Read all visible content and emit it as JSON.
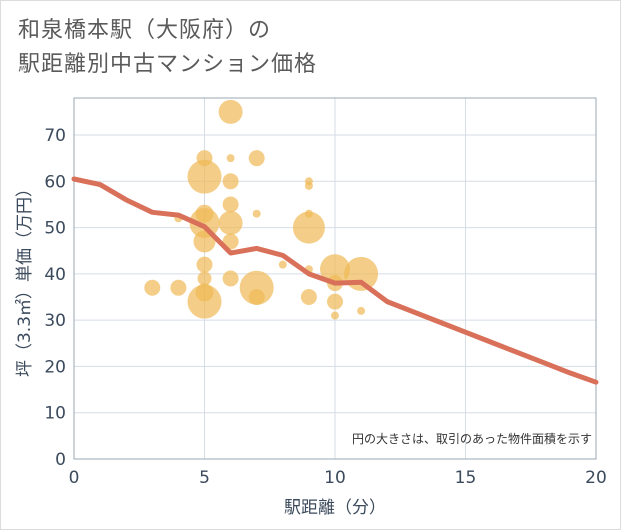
{
  "header": {
    "title_line1": "和泉橋本駅（大阪府）の",
    "title_line2": "駅距離別中古マンション価格"
  },
  "chart_data": {
    "type": "scatter",
    "title": "和泉橋本駅（大阪府）の駅距離別中古マンション価格",
    "xlabel": "駅距離（分）",
    "ylabel": "坪（3.3㎡）単価（万円）",
    "xlim": [
      0,
      20
    ],
    "ylim": [
      0,
      78
    ],
    "xticks": [
      0,
      5,
      10,
      15,
      20
    ],
    "yticks": [
      0,
      10,
      20,
      30,
      40,
      50,
      60,
      70
    ],
    "note": "円の大きさは、取引のあった物件面積を示す",
    "bubble_color": "#f0b955",
    "trend_color": "#d9705a",
    "bubbles": [
      {
        "x": 3,
        "y": 37,
        "size": 8
      },
      {
        "x": 4,
        "y": 52,
        "size": 4
      },
      {
        "x": 4,
        "y": 37,
        "size": 8
      },
      {
        "x": 5,
        "y": 65,
        "size": 8
      },
      {
        "x": 5,
        "y": 61,
        "size": 17
      },
      {
        "x": 5,
        "y": 53,
        "size": 9
      },
      {
        "x": 5,
        "y": 51,
        "size": 15
      },
      {
        "x": 5,
        "y": 47,
        "size": 11
      },
      {
        "x": 5,
        "y": 42,
        "size": 8
      },
      {
        "x": 5,
        "y": 39,
        "size": 7
      },
      {
        "x": 5,
        "y": 36,
        "size": 9
      },
      {
        "x": 5,
        "y": 34,
        "size": 17
      },
      {
        "x": 6,
        "y": 75,
        "size": 12
      },
      {
        "x": 6,
        "y": 65,
        "size": 4
      },
      {
        "x": 6,
        "y": 60,
        "size": 8
      },
      {
        "x": 6,
        "y": 55,
        "size": 8
      },
      {
        "x": 6,
        "y": 51,
        "size": 12
      },
      {
        "x": 6,
        "y": 47,
        "size": 8
      },
      {
        "x": 6,
        "y": 39,
        "size": 8
      },
      {
        "x": 7,
        "y": 65,
        "size": 8
      },
      {
        "x": 7,
        "y": 53,
        "size": 4
      },
      {
        "x": 7,
        "y": 37,
        "size": 17
      },
      {
        "x": 7,
        "y": 35,
        "size": 8
      },
      {
        "x": 8,
        "y": 42,
        "size": 4
      },
      {
        "x": 9,
        "y": 60,
        "size": 4
      },
      {
        "x": 9,
        "y": 59,
        "size": 4
      },
      {
        "x": 9,
        "y": 53,
        "size": 4
      },
      {
        "x": 9,
        "y": 50,
        "size": 16
      },
      {
        "x": 9,
        "y": 41,
        "size": 4
      },
      {
        "x": 9,
        "y": 35,
        "size": 8
      },
      {
        "x": 10,
        "y": 41,
        "size": 15
      },
      {
        "x": 10,
        "y": 38,
        "size": 8
      },
      {
        "x": 10,
        "y": 34,
        "size": 8
      },
      {
        "x": 10,
        "y": 31,
        "size": 4
      },
      {
        "x": 11,
        "y": 40,
        "size": 17
      },
      {
        "x": 11,
        "y": 32,
        "size": 4
      }
    ],
    "trend": {
      "x": [
        0,
        1,
        2,
        3,
        4,
        5,
        6,
        7,
        8,
        9,
        10,
        11,
        12,
        13,
        14,
        15,
        16,
        17,
        18,
        19,
        20
      ],
      "y": [
        60.5,
        59.3,
        56.0,
        53.3,
        52.7,
        50.2,
        44.5,
        45.5,
        44.0,
        40.0,
        38.0,
        38.2,
        34.0,
        31.8,
        29.6,
        27.4,
        25.2,
        23.0,
        20.8,
        18.6,
        16.6
      ]
    }
  }
}
